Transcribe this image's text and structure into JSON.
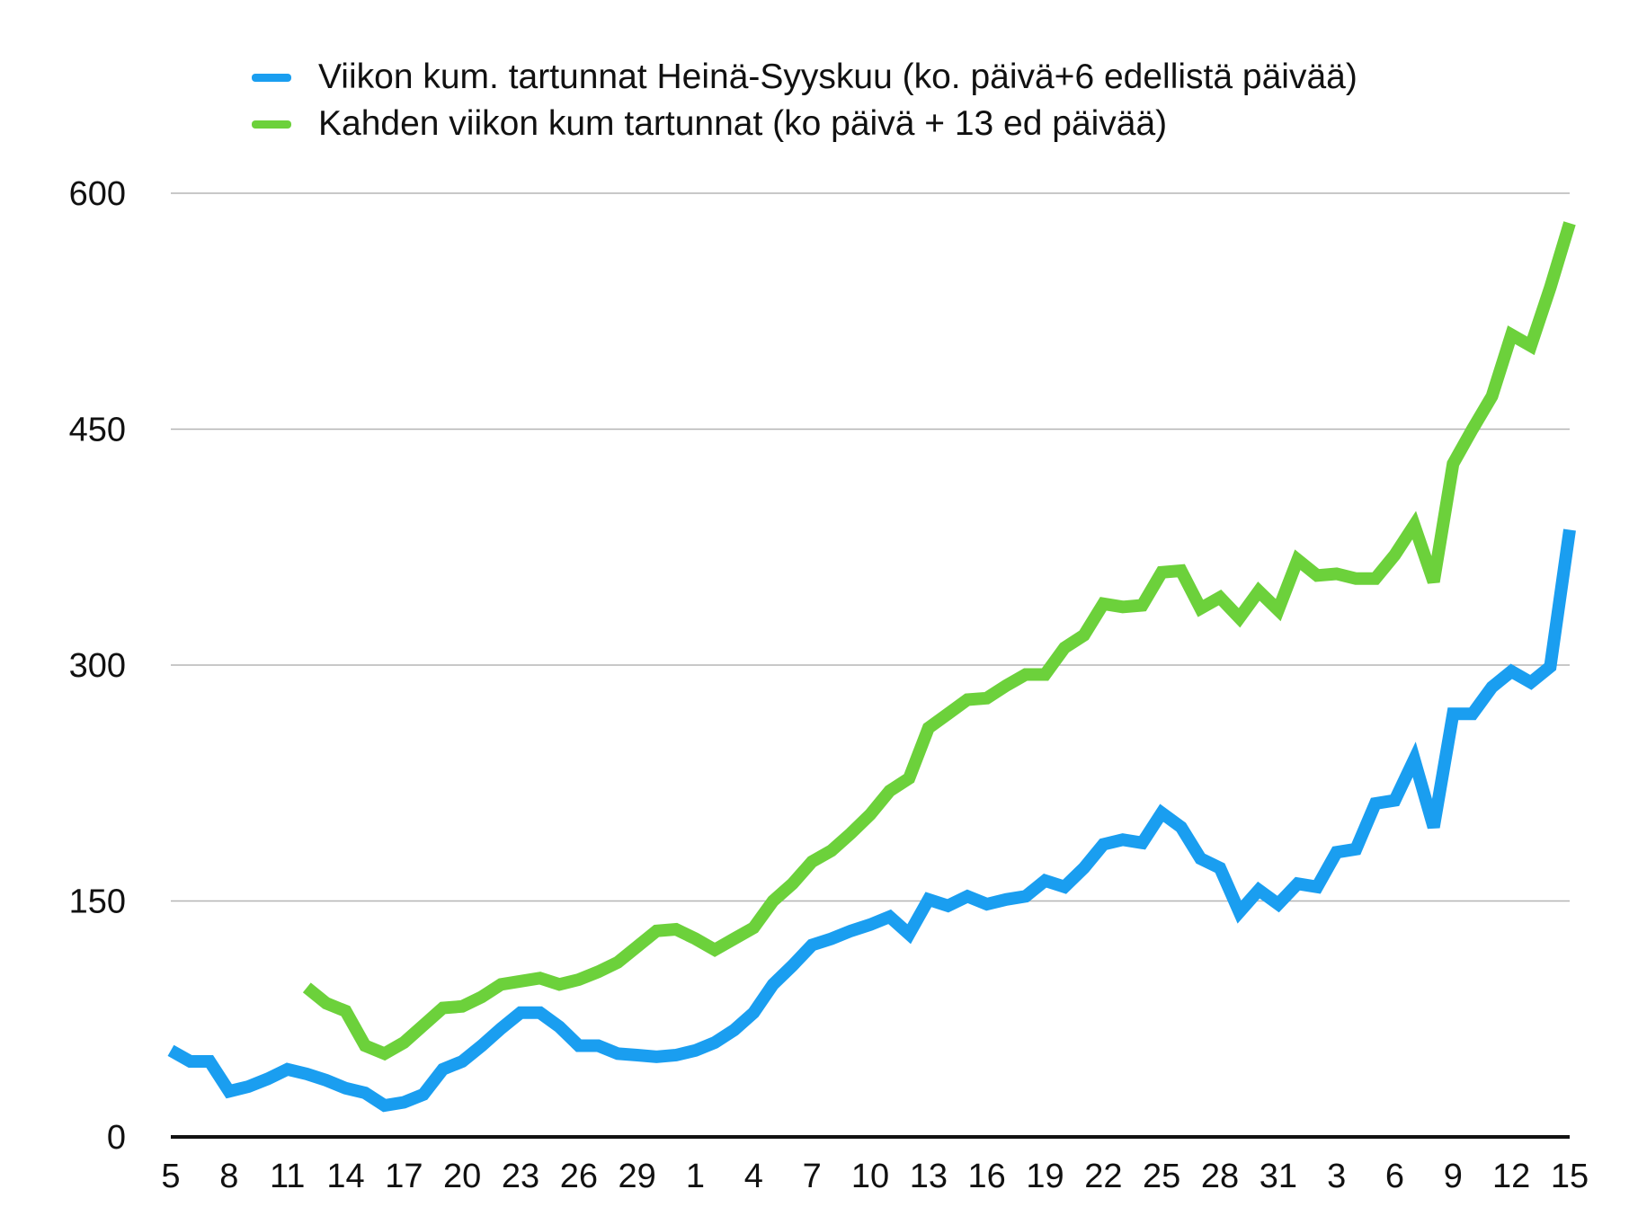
{
  "chart_data": {
    "type": "line",
    "title": "",
    "xlabel": "",
    "ylabel": "",
    "ylim": [
      0,
      600
    ],
    "yticks": [
      0,
      150,
      300,
      450,
      600
    ],
    "grid": "horizontal",
    "legend_position": "top",
    "x": [
      5,
      6,
      7,
      8,
      9,
      10,
      11,
      12,
      13,
      14,
      15,
      16,
      17,
      18,
      19,
      20,
      21,
      22,
      23,
      24,
      25,
      26,
      27,
      28,
      29,
      30,
      31,
      1,
      2,
      3,
      4,
      5,
      6,
      7,
      8,
      9,
      10,
      11,
      12,
      13,
      14,
      15,
      16,
      17,
      18,
      19,
      20,
      21,
      22,
      23,
      24,
      25,
      26,
      27,
      28,
      29,
      30,
      31,
      1,
      2,
      3,
      4,
      5,
      6,
      7,
      8,
      9,
      10,
      11,
      12,
      13,
      14,
      15
    ],
    "xtick_labels": [
      "5",
      "8",
      "11",
      "14",
      "17",
      "20",
      "23",
      "26",
      "29",
      "1",
      "4",
      "7",
      "10",
      "13",
      "16",
      "19",
      "22",
      "25",
      "28",
      "31",
      "3",
      "6",
      "9",
      "12",
      "15"
    ],
    "xtick_every": 3,
    "series": [
      {
        "name": "Viikon kum. tartunnat Heinä-Syyskuu (ko. päivä+6 edellistä päivää)",
        "color": "#1a9ef0",
        "values": [
          55,
          48,
          48,
          29,
          32,
          37,
          43,
          40,
          36,
          31,
          28,
          20,
          22,
          27,
          43,
          48,
          58,
          69,
          79,
          79,
          70,
          58,
          58,
          53,
          52,
          51,
          52,
          55,
          60,
          68,
          79,
          97,
          109,
          122,
          126,
          131,
          135,
          140,
          129,
          151,
          147,
          153,
          148,
          151,
          153,
          163,
          159,
          171,
          186,
          189,
          187,
          206,
          197,
          177,
          171,
          143,
          157,
          148,
          161,
          159,
          181,
          183,
          212,
          214,
          240,
          197,
          269,
          269,
          286,
          296,
          289,
          299,
          386
        ]
      },
      {
        "name": "Kahden viikon kum tartunnat (ko päivä + 13 ed päivää)",
        "color": "#6cd13b",
        "values": [
          null,
          null,
          null,
          null,
          null,
          null,
          null,
          95,
          85,
          80,
          58,
          53,
          60,
          71,
          82,
          83,
          89,
          97,
          99,
          101,
          97,
          100,
          105,
          111,
          121,
          131,
          132,
          126,
          119,
          126,
          133,
          150,
          161,
          175,
          182,
          193,
          205,
          220,
          228,
          260,
          269,
          278,
          279,
          287,
          294,
          294,
          311,
          319,
          339,
          337,
          338,
          359,
          360,
          336,
          343,
          330,
          347,
          335,
          367,
          357,
          358,
          355,
          355,
          370,
          389,
          353,
          428,
          450,
          471,
          510,
          503,
          540,
          581
        ]
      }
    ]
  }
}
